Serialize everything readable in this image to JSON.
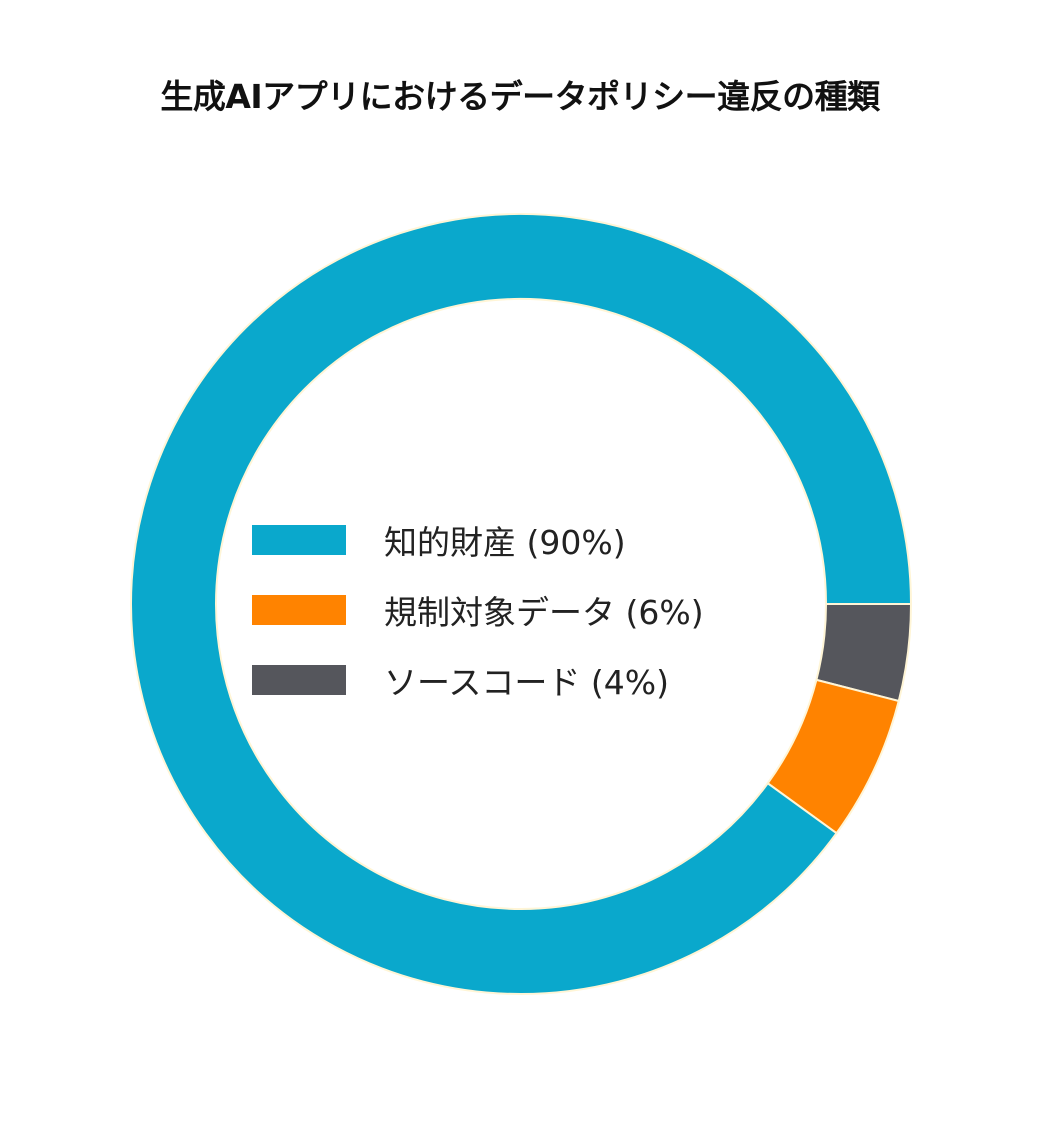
{
  "title": "生成AIアプリにおけるデータポリシー違反の種類",
  "legend": [
    {
      "label": "知的財産 (90%)",
      "color": "#0aa8cc"
    },
    {
      "label": "規制対象データ (6%)",
      "color": "#ff8300"
    },
    {
      "label": "ソースコード (4%)",
      "color": "#55565c"
    }
  ],
  "chart_data": {
    "type": "pie",
    "subtype": "donut",
    "title": "生成AIアプリにおけるデータポリシー違反の種類",
    "categories": [
      "知的財産",
      "規制対象データ",
      "ソースコード"
    ],
    "values": [
      90,
      6,
      4
    ],
    "unit": "%",
    "colors": [
      "#0aa8cc",
      "#ff8300",
      "#55565c"
    ],
    "legend_position": "center (inside donut)"
  }
}
